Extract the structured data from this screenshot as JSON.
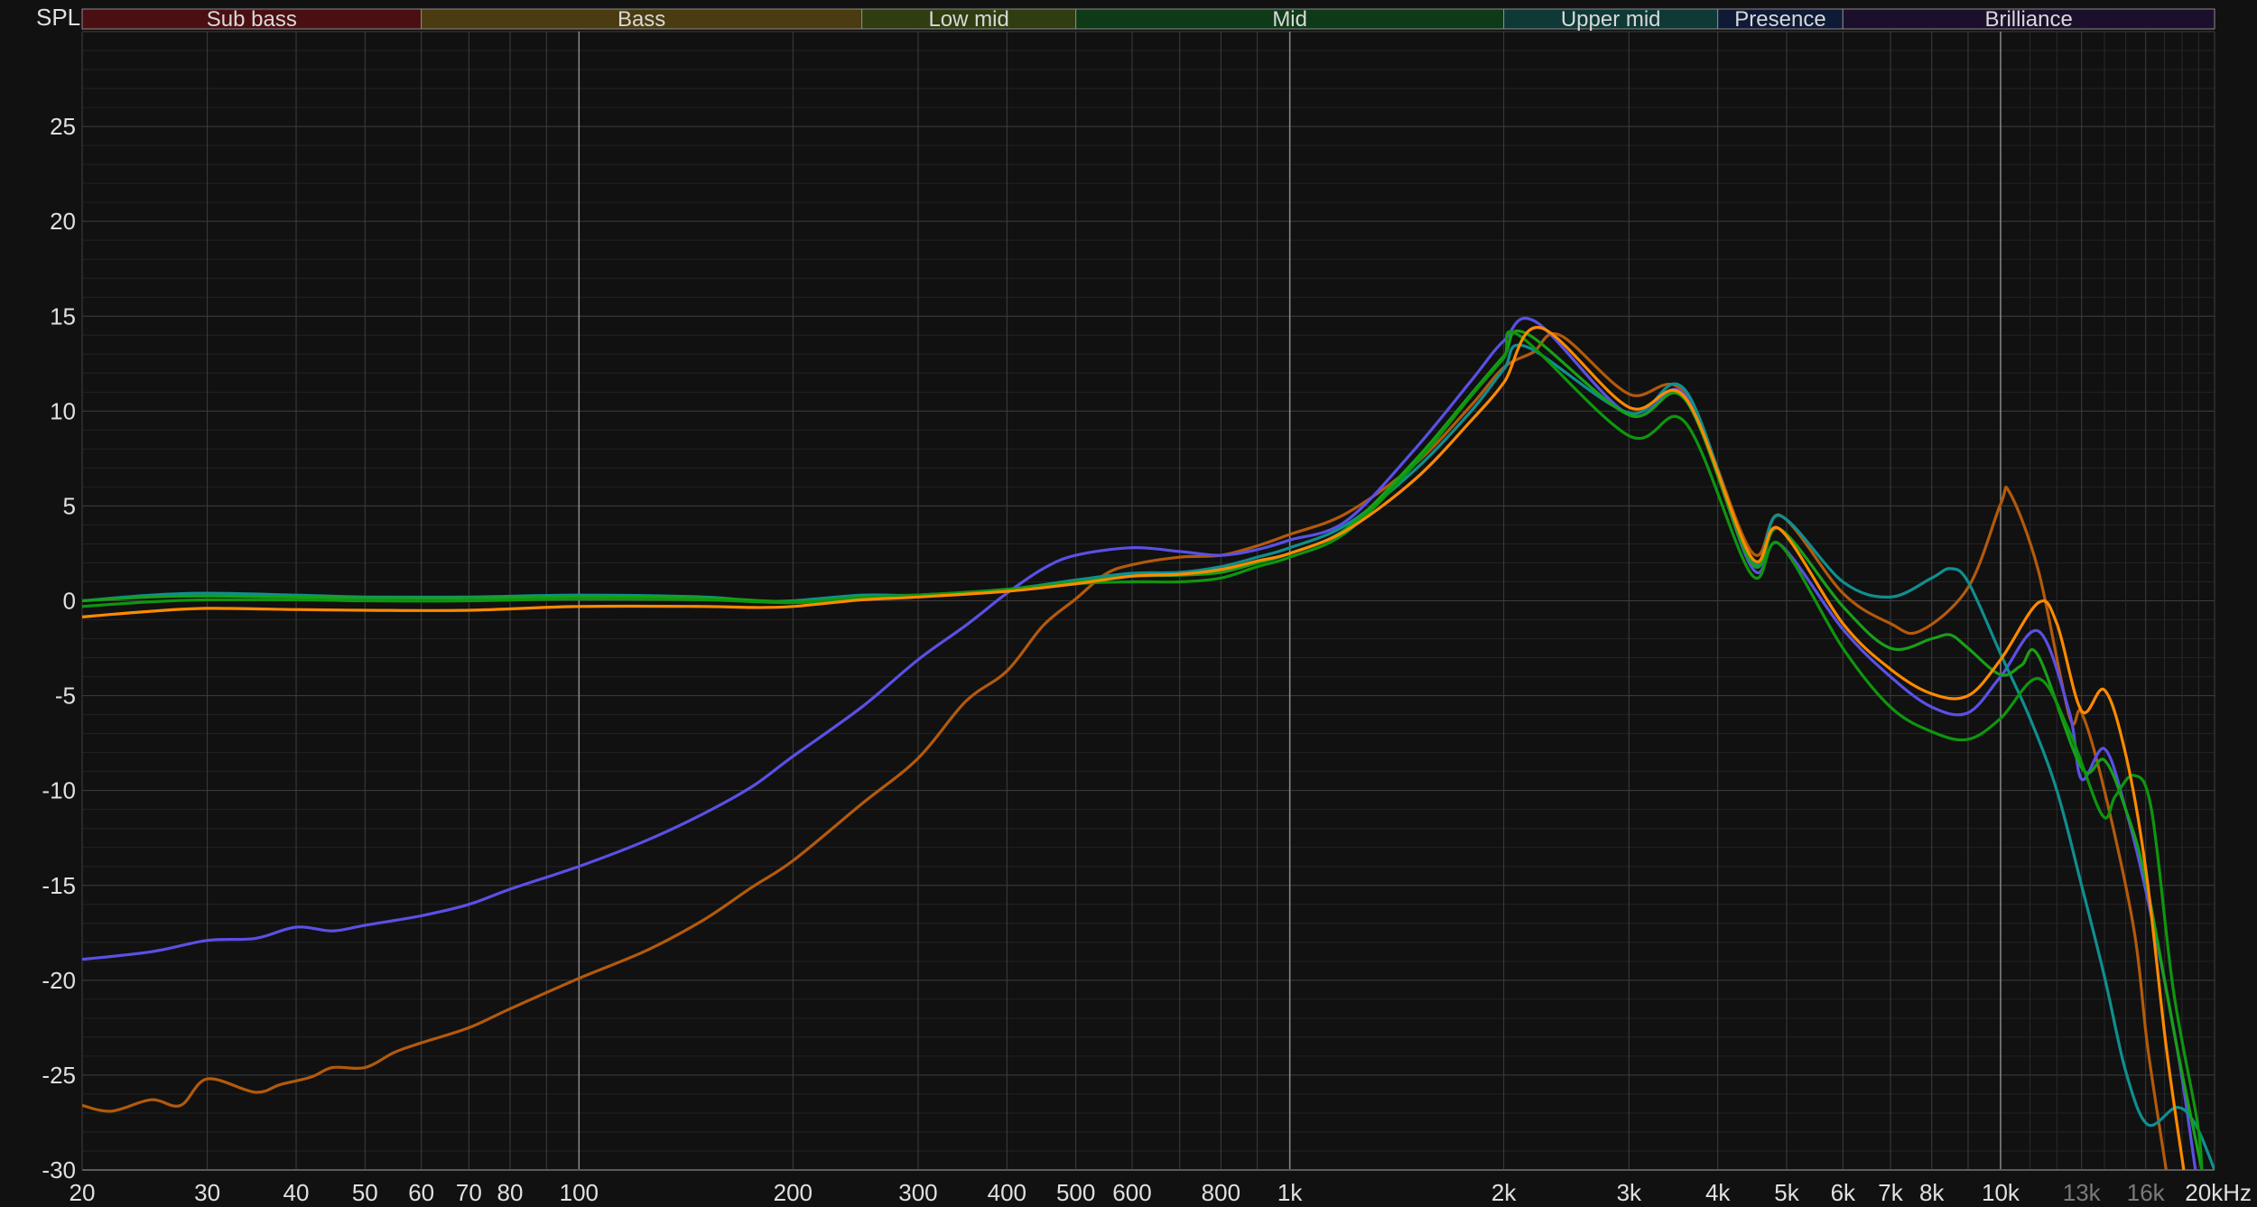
{
  "chart_data": {
    "type": "line",
    "ylabel": "SPL",
    "x_unit_label": "Hz",
    "x_scale": "log",
    "xlim": [
      20,
      20000
    ],
    "ylim": [
      -30,
      30
    ],
    "grid": true,
    "y_ticks": [
      25,
      20,
      15,
      10,
      5,
      0,
      -5,
      -10,
      -15,
      -20,
      -25,
      -30
    ],
    "x_ticks": [
      {
        "value": 20,
        "label": "20"
      },
      {
        "value": 30,
        "label": "30"
      },
      {
        "value": 40,
        "label": "40"
      },
      {
        "value": 50,
        "label": "50"
      },
      {
        "value": 60,
        "label": "60"
      },
      {
        "value": 70,
        "label": "70"
      },
      {
        "value": 80,
        "label": "80"
      },
      {
        "value": 100,
        "label": "100"
      },
      {
        "value": 200,
        "label": "200"
      },
      {
        "value": 300,
        "label": "300"
      },
      {
        "value": 400,
        "label": "400"
      },
      {
        "value": 500,
        "label": "500"
      },
      {
        "value": 600,
        "label": "600"
      },
      {
        "value": 800,
        "label": "800"
      },
      {
        "value": 1000,
        "label": "1k"
      },
      {
        "value": 2000,
        "label": "2k"
      },
      {
        "value": 3000,
        "label": "3k"
      },
      {
        "value": 4000,
        "label": "4k"
      },
      {
        "value": 5000,
        "label": "5k"
      },
      {
        "value": 6000,
        "label": "6k"
      },
      {
        "value": 7000,
        "label": "7k"
      },
      {
        "value": 8000,
        "label": "8k"
      },
      {
        "value": 10000,
        "label": "10k"
      },
      {
        "value": 13000,
        "label": "13k",
        "dim": true
      },
      {
        "value": 16000,
        "label": "16k",
        "dim": true
      },
      {
        "value": 20000,
        "label": "20kHz"
      }
    ],
    "bands": [
      {
        "label": "Sub bass",
        "from": 20,
        "to": 60,
        "color": "#4a0f12"
      },
      {
        "label": "Bass",
        "from": 60,
        "to": 250,
        "color": "#4a3b10"
      },
      {
        "label": "Low mid",
        "from": 250,
        "to": 500,
        "color": "#2f3d11"
      },
      {
        "label": "Mid",
        "from": 500,
        "to": 2000,
        "color": "#0f3a17"
      },
      {
        "label": "Upper mid",
        "from": 2000,
        "to": 4000,
        "color": "#0f3936"
      },
      {
        "label": "Presence",
        "from": 4000,
        "to": 6000,
        "color": "#0f1a36"
      },
      {
        "label": "Brilliance",
        "from": 6000,
        "to": 20000,
        "color": "#1c0f2b"
      }
    ],
    "series": [
      {
        "color": "#b35a0c",
        "points": [
          [
            20,
            -26.6
          ],
          [
            22,
            -26.9
          ],
          [
            25,
            -26.3
          ],
          [
            27.5,
            -26.6
          ],
          [
            30,
            -25.2
          ],
          [
            35,
            -25.9
          ],
          [
            38,
            -25.5
          ],
          [
            42,
            -25.1
          ],
          [
            45,
            -24.6
          ],
          [
            50,
            -24.6
          ],
          [
            55,
            -23.8
          ],
          [
            60,
            -23.3
          ],
          [
            70,
            -22.5
          ],
          [
            80,
            -21.5
          ],
          [
            100,
            -19.9
          ],
          [
            125,
            -18.4
          ],
          [
            150,
            -16.8
          ],
          [
            175,
            -15.1
          ],
          [
            200,
            -13.7
          ],
          [
            250,
            -10.7
          ],
          [
            300,
            -8.3
          ],
          [
            350,
            -5.3
          ],
          [
            400,
            -3.7
          ],
          [
            450,
            -1.3
          ],
          [
            500,
            0.1
          ],
          [
            550,
            1.4
          ],
          [
            600,
            1.9
          ],
          [
            700,
            2.3
          ],
          [
            800,
            2.4
          ],
          [
            900,
            2.9
          ],
          [
            1000,
            3.5
          ],
          [
            1200,
            4.6
          ],
          [
            1500,
            7.2
          ],
          [
            1800,
            10.3
          ],
          [
            2000,
            12.3
          ],
          [
            2200,
            13.1
          ],
          [
            2400,
            14
          ],
          [
            3000,
            10.9
          ],
          [
            3600,
            10.9
          ],
          [
            4460,
            2.6
          ],
          [
            4900,
            4.5
          ],
          [
            6000,
            0.4
          ],
          [
            7000,
            -1.2
          ],
          [
            7700,
            -1.6
          ],
          [
            9000,
            0.7
          ],
          [
            10000,
            5.1
          ],
          [
            10300,
            5.7
          ],
          [
            11300,
            1.6
          ],
          [
            12500,
            -6.1
          ],
          [
            13000,
            -5.9
          ],
          [
            14000,
            -10
          ],
          [
            15400,
            -17.3
          ],
          [
            16100,
            -23.5
          ],
          [
            17100,
            -30
          ]
        ]
      },
      {
        "color": "#5a50e6",
        "points": [
          [
            20,
            -18.9
          ],
          [
            25,
            -18.5
          ],
          [
            30,
            -17.9
          ],
          [
            35,
            -17.8
          ],
          [
            40,
            -17.2
          ],
          [
            45,
            -17.4
          ],
          [
            50,
            -17.1
          ],
          [
            60,
            -16.6
          ],
          [
            70,
            -16
          ],
          [
            80,
            -15.2
          ],
          [
            100,
            -14
          ],
          [
            125,
            -12.6
          ],
          [
            150,
            -11.2
          ],
          [
            175,
            -9.8
          ],
          [
            200,
            -8.2
          ],
          [
            250,
            -5.6
          ],
          [
            300,
            -3.1
          ],
          [
            350,
            -1.3
          ],
          [
            400,
            0.4
          ],
          [
            450,
            1.7
          ],
          [
            500,
            2.4
          ],
          [
            600,
            2.8
          ],
          [
            700,
            2.6
          ],
          [
            800,
            2.4
          ],
          [
            900,
            2.7
          ],
          [
            1000,
            3.2
          ],
          [
            1200,
            4.2
          ],
          [
            1500,
            8
          ],
          [
            1800,
            11.6
          ],
          [
            2000,
            13.7
          ],
          [
            2220,
            14.7
          ],
          [
            3000,
            9.8
          ],
          [
            3600,
            10.8
          ],
          [
            4460,
            1.8
          ],
          [
            4880,
            3
          ],
          [
            6000,
            -1.5
          ],
          [
            7000,
            -4
          ],
          [
            8000,
            -5.6
          ],
          [
            9000,
            -5.9
          ],
          [
            10000,
            -4
          ],
          [
            11300,
            -1.6
          ],
          [
            12500,
            -5.9
          ],
          [
            13000,
            -9.4
          ],
          [
            14000,
            -7.8
          ],
          [
            15000,
            -11
          ],
          [
            16100,
            -15.7
          ],
          [
            17700,
            -23.5
          ],
          [
            18800,
            -30
          ]
        ]
      },
      {
        "color": "#0f8f8f",
        "points": [
          [
            20,
            0
          ],
          [
            25,
            0.3
          ],
          [
            30,
            0.4
          ],
          [
            40,
            0.3
          ],
          [
            50,
            0.2
          ],
          [
            70,
            0.2
          ],
          [
            100,
            0.3
          ],
          [
            150,
            0.2
          ],
          [
            175,
            0
          ],
          [
            200,
            0
          ],
          [
            250,
            0.3
          ],
          [
            300,
            0.3
          ],
          [
            400,
            0.6
          ],
          [
            500,
            1.1
          ],
          [
            600,
            1.45
          ],
          [
            700,
            1.5
          ],
          [
            800,
            1.8
          ],
          [
            900,
            2.3
          ],
          [
            1000,
            2.8
          ],
          [
            1200,
            4
          ],
          [
            1500,
            6.9
          ],
          [
            1800,
            10
          ],
          [
            2000,
            12.2
          ],
          [
            2150,
            13.4
          ],
          [
            3000,
            9.9
          ],
          [
            3600,
            11.1
          ],
          [
            4460,
            2.1
          ],
          [
            4880,
            4.5
          ],
          [
            6000,
            1
          ],
          [
            7000,
            0.2
          ],
          [
            8000,
            1.2
          ],
          [
            8500,
            1.7
          ],
          [
            9000,
            1
          ],
          [
            10000,
            -2.8
          ],
          [
            11000,
            -6.2
          ],
          [
            12000,
            -10
          ],
          [
            13000,
            -15
          ],
          [
            14000,
            -19.8
          ],
          [
            15000,
            -24.8
          ],
          [
            16100,
            -27.6
          ],
          [
            17700,
            -26.7
          ],
          [
            18800,
            -27.6
          ],
          [
            20000,
            -30
          ]
        ]
      },
      {
        "color": "#18a018",
        "points": [
          [
            20,
            0
          ],
          [
            25,
            0.2
          ],
          [
            30,
            0.25
          ],
          [
            40,
            0.2
          ],
          [
            50,
            0.15
          ],
          [
            70,
            0.15
          ],
          [
            100,
            0.2
          ],
          [
            150,
            0.15
          ],
          [
            200,
            -0.05
          ],
          [
            250,
            0.2
          ],
          [
            300,
            0.3
          ],
          [
            400,
            0.6
          ],
          [
            500,
            1
          ],
          [
            600,
            1.3
          ],
          [
            700,
            1.35
          ],
          [
            800,
            1.5
          ],
          [
            900,
            2
          ],
          [
            1000,
            2.5
          ],
          [
            1200,
            3.8
          ],
          [
            1500,
            7.4
          ],
          [
            1800,
            10.9
          ],
          [
            2000,
            12.9
          ],
          [
            2150,
            14.1
          ],
          [
            3000,
            9.8
          ],
          [
            3600,
            10.6
          ],
          [
            4460,
            2
          ],
          [
            4880,
            3.8
          ],
          [
            6000,
            -0.3
          ],
          [
            7000,
            -2.5
          ],
          [
            8000,
            -2
          ],
          [
            8500,
            -1.8
          ],
          [
            9000,
            -2.5
          ],
          [
            10000,
            -3.9
          ],
          [
            10700,
            -3.4
          ],
          [
            11300,
            -2.9
          ],
          [
            13000,
            -8.8
          ],
          [
            14000,
            -8.4
          ],
          [
            15000,
            -11
          ],
          [
            16000,
            -14.7
          ],
          [
            17700,
            -23.5
          ],
          [
            19200,
            -30
          ]
        ]
      },
      {
        "color": "#0e960e",
        "points": [
          [
            20,
            -0.3
          ],
          [
            25,
            -0.05
          ],
          [
            30,
            0.05
          ],
          [
            40,
            0.05
          ],
          [
            50,
            0
          ],
          [
            70,
            0
          ],
          [
            100,
            0.1
          ],
          [
            150,
            0.05
          ],
          [
            200,
            -0.1
          ],
          [
            250,
            0.15
          ],
          [
            300,
            0.3
          ],
          [
            400,
            0.55
          ],
          [
            500,
            0.9
          ],
          [
            600,
            1
          ],
          [
            700,
            1
          ],
          [
            800,
            1.2
          ],
          [
            900,
            1.8
          ],
          [
            1000,
            2.3
          ],
          [
            1200,
            3.6
          ],
          [
            1500,
            7.2
          ],
          [
            1800,
            10.8
          ],
          [
            2000,
            12.8
          ],
          [
            2100,
            14
          ],
          [
            3000,
            8.7
          ],
          [
            3600,
            9.4
          ],
          [
            4460,
            1.4
          ],
          [
            4880,
            3
          ],
          [
            6000,
            -2.5
          ],
          [
            7000,
            -5.6
          ],
          [
            8000,
            -6.9
          ],
          [
            9000,
            -7.3
          ],
          [
            10000,
            -6.2
          ],
          [
            11300,
            -4.1
          ],
          [
            12500,
            -6.9
          ],
          [
            13900,
            -11.3
          ],
          [
            14500,
            -10.3
          ],
          [
            15400,
            -9.2
          ],
          [
            16300,
            -11
          ],
          [
            17500,
            -20.5
          ],
          [
            18900,
            -27.4
          ],
          [
            19200,
            -30
          ]
        ]
      },
      {
        "color": "#ff8a00",
        "points": [
          [
            20,
            -0.85
          ],
          [
            25,
            -0.55
          ],
          [
            30,
            -0.4
          ],
          [
            40,
            -0.46
          ],
          [
            50,
            -0.5
          ],
          [
            70,
            -0.5
          ],
          [
            100,
            -0.3
          ],
          [
            150,
            -0.3
          ],
          [
            175,
            -0.35
          ],
          [
            200,
            -0.3
          ],
          [
            250,
            0.05
          ],
          [
            300,
            0.2
          ],
          [
            400,
            0.5
          ],
          [
            500,
            0.9
          ],
          [
            600,
            1.3
          ],
          [
            700,
            1.4
          ],
          [
            800,
            1.65
          ],
          [
            900,
            2.1
          ],
          [
            1000,
            2.5
          ],
          [
            1200,
            3.7
          ],
          [
            1500,
            6.4
          ],
          [
            1800,
            9.5
          ],
          [
            2000,
            11.5
          ],
          [
            2250,
            14.4
          ],
          [
            3000,
            10.2
          ],
          [
            3600,
            10.7
          ],
          [
            4460,
            2.3
          ],
          [
            4880,
            3.8
          ],
          [
            6000,
            -1.2
          ],
          [
            7000,
            -3.6
          ],
          [
            8000,
            -4.9
          ],
          [
            9000,
            -5
          ],
          [
            10000,
            -3.1
          ],
          [
            11300,
            -0.1
          ],
          [
            12000,
            -1.2
          ],
          [
            13000,
            -5.8
          ],
          [
            14000,
            -4.7
          ],
          [
            15000,
            -8.1
          ],
          [
            16000,
            -14.1
          ],
          [
            17100,
            -23.5
          ],
          [
            18100,
            -30
          ]
        ]
      }
    ]
  }
}
